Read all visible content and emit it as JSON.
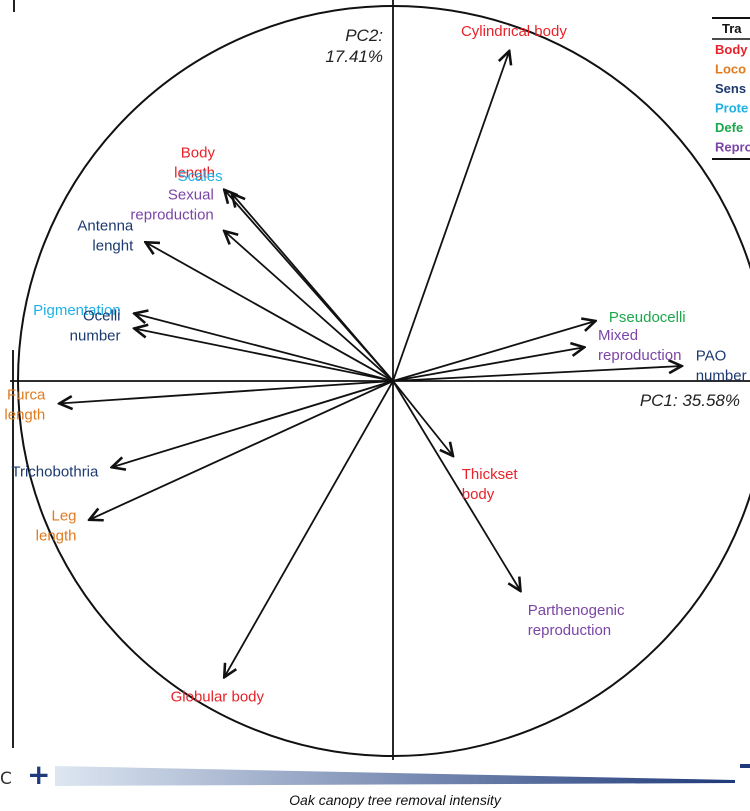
{
  "chart_data": {
    "type": "scatter",
    "subtype": "pca-correlation-circle",
    "xlabel": "PC1: 35.58%",
    "ylabel": "PC2:\n17.41%",
    "xlim": [
      -1,
      1
    ],
    "ylim": [
      -1,
      1
    ],
    "grid": false,
    "legend_position": "top-right",
    "legend": {
      "header": "Tra",
      "entries": [
        {
          "label": "Body",
          "color": "#e8222a"
        },
        {
          "label": "Loco",
          "color": "#e07b1f"
        },
        {
          "label": "Sens",
          "color": "#1c3a70"
        },
        {
          "label": "Prote",
          "color": "#1fb1e6"
        },
        {
          "label": "Defe",
          "color": "#1aa84a"
        },
        {
          "label": "Repro",
          "color": "#7b45a6"
        }
      ]
    },
    "vectors": [
      {
        "label": "Cylindrical body",
        "x": 0.31,
        "y": 0.88,
        "color": "#e8222a"
      },
      {
        "label": "Body\nlength",
        "x": -0.45,
        "y": 0.51,
        "color": "#e8222a"
      },
      {
        "label": "Scales",
        "x": -0.43,
        "y": 0.5,
        "color": "#1fb1e6"
      },
      {
        "label": "Sexual\nreproduction",
        "x": -0.45,
        "y": 0.4,
        "color": "#7b45a6"
      },
      {
        "label": "Antenna\nlenght",
        "x": -0.66,
        "y": 0.37,
        "color": "#1c3a70"
      },
      {
        "label": "Pigmentation",
        "x": -0.69,
        "y": 0.18,
        "color": "#1fb1e6"
      },
      {
        "label": "Ocelli\nnumber",
        "x": -0.69,
        "y": 0.14,
        "color": "#1c3a70"
      },
      {
        "label": "Pseudocelli",
        "x": 0.54,
        "y": 0.16,
        "color": "#1aa84a"
      },
      {
        "label": "Mixed\nreproduction",
        "x": 0.51,
        "y": 0.09,
        "color": "#7b45a6"
      },
      {
        "label": "PAO\nnumber",
        "x": 0.77,
        "y": 0.04,
        "color": "#1c3a70"
      },
      {
        "label": "Furca\nlength",
        "x": -0.89,
        "y": -0.06,
        "color": "#e07b1f"
      },
      {
        "label": "Trichobothria",
        "x": -0.75,
        "y": -0.23,
        "color": "#1c3a70"
      },
      {
        "label": "Leg\nlength",
        "x": -0.81,
        "y": -0.37,
        "color": "#e07b1f"
      },
      {
        "label": "Thickset\nbody",
        "x": 0.16,
        "y": -0.2,
        "color": "#e8222a"
      },
      {
        "label": "Parthenogenic\nreproduction",
        "x": 0.34,
        "y": -0.56,
        "color": "#7b45a6"
      },
      {
        "label": "Globular body",
        "x": -0.45,
        "y": -0.79,
        "color": "#e8222a"
      }
    ]
  },
  "gradient": {
    "caption": "Oak canopy tree removal intensity",
    "plus_symbol": "+",
    "left_char": "C",
    "start_color": "#dde6f1",
    "end_color": "#1f3a7a"
  }
}
